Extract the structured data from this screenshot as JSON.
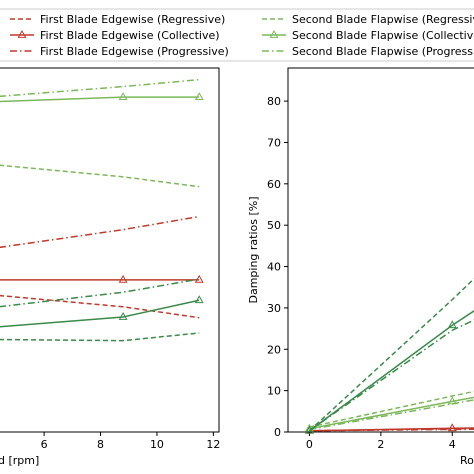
{
  "chart_data": [
    {
      "type": "line",
      "xlabel": "d [rpm]",
      "ylabel": "",
      "xlim": [
        4.4,
        12.2
      ],
      "ylim": [
        0,
        100
      ],
      "x_ticks": [
        6,
        8,
        10,
        12
      ],
      "series": [
        {
          "name": "First Blade Edgewise (Regressive)",
          "color": "#c0392b",
          "dash": "dashed",
          "marker": "",
          "x": [
            4.4,
            8.8,
            11.5
          ],
          "y": [
            37.5,
            34.4,
            31.4
          ]
        },
        {
          "name": "First Blade Edgewise (Collective)",
          "color": "#c0392b",
          "dash": "solid",
          "marker": "tri",
          "x": [
            4.4,
            8.8,
            11.5
          ],
          "y": [
            41.8,
            41.8,
            41.8
          ]
        },
        {
          "name": "First Blade Edgewise (Progressive)",
          "color": "#c0392b",
          "dash": "dashdot",
          "marker": "",
          "x": [
            4.4,
            8.8,
            11.5
          ],
          "y": [
            50.7,
            55.6,
            59.2
          ]
        },
        {
          "name": "Second Blade Flapwise (Regressive)",
          "color": "#7cb85a",
          "dash": "dashed",
          "marker": "",
          "x": [
            4.4,
            8.8,
            11.5
          ],
          "y": [
            73.3,
            70.1,
            67.4
          ]
        },
        {
          "name": "Second Blade Flapwise (Collective)",
          "color": "#7cb85a",
          "dash": "solid",
          "marker": "tri",
          "x": [
            4.4,
            8.8,
            11.5
          ],
          "y": [
            90.8,
            92.0,
            92.0
          ]
        },
        {
          "name": "Second Blade Flapwise (Progressive)",
          "color": "#7cb85a",
          "dash": "dashdot",
          "marker": "",
          "x": [
            4.4,
            8.8,
            11.5
          ],
          "y": [
            92.2,
            94.9,
            96.8
          ]
        },
        {
          "name": "",
          "color": "#3a8a4a",
          "dash": "dashed",
          "marker": "",
          "x": [
            4.4,
            8.8,
            11.5
          ],
          "y": [
            25.4,
            25.1,
            27.2
          ]
        },
        {
          "name": "",
          "color": "#3a8a4a",
          "dash": "solid",
          "marker": "tri",
          "x": [
            4.4,
            8.8,
            11.5
          ],
          "y": [
            28.9,
            31.6,
            36.2
          ]
        },
        {
          "name": "",
          "color": "#3a8a4a",
          "dash": "dashdot",
          "marker": "",
          "x": [
            4.4,
            8.8,
            11.5
          ],
          "y": [
            34.4,
            38.4,
            42.0
          ]
        }
      ]
    },
    {
      "type": "line",
      "xlabel": "Ro",
      "ylabel": "Damping ratios [%]",
      "xlim": [
        -0.6,
        5.0
      ],
      "ylim": [
        0,
        88
      ],
      "x_ticks": [
        0,
        2,
        4
      ],
      "y_ticks": [
        0,
        10,
        20,
        30,
        40,
        50,
        60,
        70,
        80
      ],
      "series": [
        {
          "name": "First Blade Edgewise (Regressive)",
          "color": "#c0392b",
          "dash": "dashed",
          "marker": "",
          "x": [
            0,
            5
          ],
          "y": [
            0.3,
            0.9
          ]
        },
        {
          "name": "First Blade Edgewise (Collective)",
          "color": "#c0392b",
          "dash": "solid",
          "marker": "tri",
          "x": [
            0,
            4,
            5
          ],
          "y": [
            0.3,
            0.9,
            1.0
          ]
        },
        {
          "name": "First Blade Edgewise (Progressive)",
          "color": "#c0392b",
          "dash": "dashdot",
          "marker": "",
          "x": [
            0,
            5
          ],
          "y": [
            0.3,
            0.7
          ]
        },
        {
          "name": "Second Blade Flapwise (Regressive)",
          "color": "#7cb85a",
          "dash": "dashed",
          "marker": "",
          "x": [
            0,
            4,
            5
          ],
          "y": [
            1.2,
            8.7,
            10.5
          ]
        },
        {
          "name": "Second Blade Flapwise (Collective)",
          "color": "#7cb85a",
          "dash": "solid",
          "marker": "tri",
          "x": [
            0,
            4,
            5
          ],
          "y": [
            0.8,
            7.4,
            9.0
          ]
        },
        {
          "name": "Second Blade Flapwise (Progressive)",
          "color": "#7cb85a",
          "dash": "dashdot",
          "marker": "",
          "x": [
            0,
            4,
            5
          ],
          "y": [
            0.6,
            6.8,
            8.4
          ]
        },
        {
          "name": "",
          "color": "#3a8a4a",
          "dash": "dashed",
          "marker": "",
          "x": [
            0,
            4,
            5
          ],
          "y": [
            0.3,
            32.0,
            40.3
          ]
        },
        {
          "name": "",
          "color": "#3a8a4a",
          "dash": "solid",
          "marker": "tri",
          "x": [
            0,
            4,
            5
          ],
          "y": [
            0.3,
            25.8,
            31.5
          ]
        },
        {
          "name": "",
          "color": "#3a8a4a",
          "dash": "dashdot",
          "marker": "",
          "x": [
            0,
            4,
            5
          ],
          "y": [
            0.3,
            24.6,
            28.6
          ]
        }
      ]
    }
  ],
  "legend": {
    "items": [
      {
        "label": "First Blade Edgewise (Regressive)",
        "color": "#c0392b",
        "dash": "dashed",
        "marker": ""
      },
      {
        "label": "First Blade Edgewise (Collective)",
        "color": "#c0392b",
        "dash": "solid",
        "marker": "tri"
      },
      {
        "label": "First Blade Edgewise (Progressive)",
        "color": "#c0392b",
        "dash": "dashdot",
        "marker": ""
      },
      {
        "label": "Second Blade Flapwise (Regressive",
        "color": "#7cb85a",
        "dash": "dashed",
        "marker": ""
      },
      {
        "label": "Second Blade Flapwise (Collective",
        "color": "#7cb85a",
        "dash": "solid",
        "marker": "tri"
      },
      {
        "label": "Second Blade Flapwise (Progressive",
        "color": "#7cb85a",
        "dash": "dashdot",
        "marker": ""
      }
    ]
  }
}
